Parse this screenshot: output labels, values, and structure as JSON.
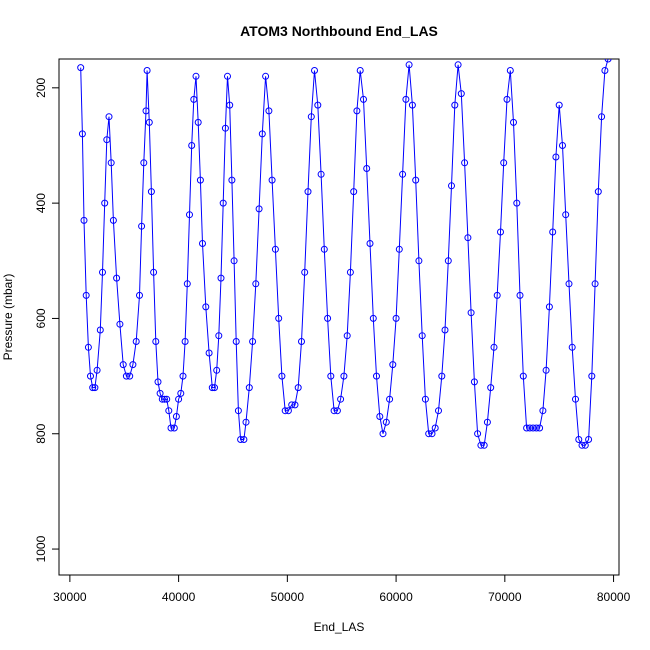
{
  "chart_data": {
    "type": "line",
    "title": "ATOM3 Northbound End_LAS",
    "xlabel": "End_LAS",
    "ylabel": "Pressure (mbar)",
    "xlim": [
      29000,
      80500
    ],
    "ylim": [
      1045,
      150
    ],
    "y_reversed": true,
    "grid": false,
    "legend": "none",
    "x_ticks": [
      30000,
      40000,
      50000,
      60000,
      70000,
      80000
    ],
    "y_ticks": [
      200,
      400,
      600,
      800,
      1000
    ],
    "series_color": "#0000ff",
    "marker": "open-circle",
    "series": [
      {
        "x": [
          31000,
          31150,
          31300,
          31500,
          31700,
          31900,
          32100,
          32300,
          32500,
          32800,
          33000,
          33200,
          33400,
          33600,
          33800,
          34000,
          34300,
          34600,
          34900,
          35200,
          35500,
          35800,
          36100,
          36400,
          36600,
          36800,
          37000,
          37100,
          37300,
          37500,
          37700,
          37900,
          38100,
          38300,
          38500,
          38700,
          38900,
          39100,
          39300,
          39600,
          39800,
          40000,
          40200,
          40400,
          40600,
          40800,
          41000,
          41200,
          41400,
          41600,
          41800,
          42000,
          42200,
          42500,
          42800,
          43100,
          43300,
          43500,
          43700,
          43900,
          44100,
          44300,
          44500,
          44700,
          44900,
          45100,
          45300,
          45500,
          45700,
          46000,
          46200,
          46500,
          46800,
          47100,
          47400,
          47700,
          48000,
          48300,
          48600,
          48900,
          49200,
          49500,
          49800,
          50100,
          50400,
          50700,
          51000,
          51300,
          51600,
          51900,
          52200,
          52500,
          52800,
          53100,
          53400,
          53700,
          54000,
          54300,
          54600,
          54900,
          55200,
          55500,
          55800,
          56100,
          56400,
          56700,
          57000,
          57300,
          57600,
          57900,
          58200,
          58500,
          58800,
          59100,
          59400,
          59700,
          60000,
          60300,
          60600,
          60900,
          61200,
          61500,
          61800,
          62100,
          62400,
          62700,
          63000,
          63300,
          63600,
          63900,
          64200,
          64500,
          64800,
          65100,
          65400,
          65700,
          66000,
          66300,
          66600,
          66900,
          67200,
          67500,
          67800,
          68100,
          68400,
          68700,
          69000,
          69300,
          69600,
          69900,
          70200,
          70500,
          70800,
          71100,
          71400,
          71700,
          72000,
          72300,
          72600,
          72900,
          73200,
          73500,
          73800,
          74100,
          74400,
          74700,
          75000,
          75300,
          75600,
          75900,
          76200,
          76500,
          76800,
          77100,
          77400,
          77700,
          78000,
          78300,
          78600,
          78900,
          79200,
          79500
        ],
        "y": [
          165,
          280,
          430,
          560,
          650,
          700,
          720,
          720,
          690,
          620,
          520,
          400,
          290,
          250,
          330,
          430,
          530,
          610,
          680,
          700,
          700,
          680,
          640,
          560,
          440,
          330,
          240,
          170,
          260,
          380,
          520,
          640,
          710,
          730,
          740,
          740,
          740,
          760,
          790,
          790,
          770,
          740,
          730,
          700,
          640,
          540,
          420,
          300,
          220,
          180,
          260,
          360,
          470,
          580,
          660,
          720,
          720,
          690,
          630,
          530,
          400,
          270,
          180,
          230,
          360,
          500,
          640,
          760,
          810,
          810,
          780,
          720,
          640,
          540,
          410,
          280,
          180,
          240,
          360,
          480,
          600,
          700,
          760,
          760,
          750,
          750,
          720,
          640,
          520,
          380,
          250,
          170,
          230,
          350,
          480,
          600,
          700,
          760,
          760,
          740,
          700,
          630,
          520,
          380,
          240,
          170,
          220,
          340,
          470,
          600,
          700,
          770,
          800,
          780,
          740,
          680,
          600,
          480,
          350,
          220,
          160,
          230,
          360,
          500,
          630,
          740,
          800,
          800,
          790,
          760,
          700,
          620,
          500,
          370,
          230,
          160,
          210,
          330,
          460,
          590,
          710,
          800,
          820,
          820,
          780,
          720,
          650,
          560,
          450,
          330,
          220,
          170,
          260,
          400,
          560,
          700,
          790,
          790,
          790,
          790,
          790,
          760,
          690,
          580,
          450,
          320,
          230,
          300,
          420,
          540,
          650,
          740,
          810,
          820,
          820,
          810,
          700,
          540,
          380,
          250,
          170,
          150
        ]
      }
    ]
  }
}
